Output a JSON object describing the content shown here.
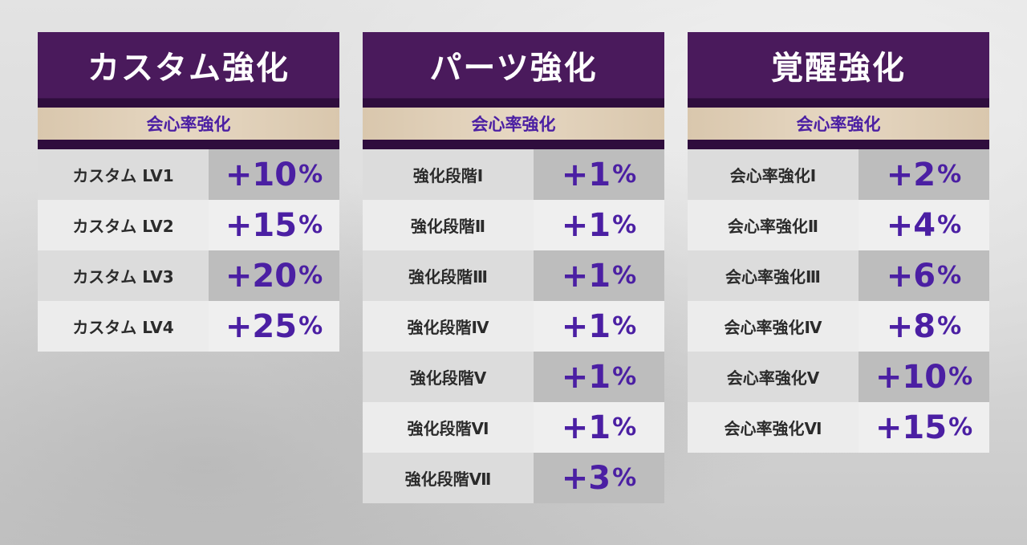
{
  "panels": [
    {
      "id": "custom",
      "title": "カスタム強化",
      "subtitle": "会心率強化",
      "rows": [
        {
          "label": "カスタム LV1",
          "value": "+10",
          "unit": "%"
        },
        {
          "label": "カスタム LV2",
          "value": "+15",
          "unit": "%"
        },
        {
          "label": "カスタム LV3",
          "value": "+20",
          "unit": "%"
        },
        {
          "label": "カスタム LV4",
          "value": "+25",
          "unit": "%"
        }
      ]
    },
    {
      "id": "parts",
      "title": "パーツ強化",
      "subtitle": "会心率強化",
      "rows": [
        {
          "label": "強化段階Ⅰ",
          "value": "+1",
          "unit": "%"
        },
        {
          "label": "強化段階Ⅱ",
          "value": "+1",
          "unit": "%"
        },
        {
          "label": "強化段階Ⅲ",
          "value": "+1",
          "unit": "%"
        },
        {
          "label": "強化段階Ⅳ",
          "value": "+1",
          "unit": "%"
        },
        {
          "label": "強化段階Ⅴ",
          "value": "+1",
          "unit": "%"
        },
        {
          "label": "強化段階Ⅵ",
          "value": "+1",
          "unit": "%"
        },
        {
          "label": "強化段階Ⅶ",
          "value": "+3",
          "unit": "%"
        }
      ]
    },
    {
      "id": "awaken",
      "title": "覚醒強化",
      "subtitle": "会心率強化",
      "rows": [
        {
          "label": "会心率強化Ⅰ",
          "value": "+2",
          "unit": "%"
        },
        {
          "label": "会心率強化Ⅱ",
          "value": "+4",
          "unit": "%"
        },
        {
          "label": "会心率強化Ⅲ",
          "value": "+6",
          "unit": "%"
        },
        {
          "label": "会心率強化Ⅳ",
          "value": "+8",
          "unit": "%"
        },
        {
          "label": "会心率強化Ⅴ",
          "value": "+10",
          "unit": "%"
        },
        {
          "label": "会心率強化Ⅵ",
          "value": "+15",
          "unit": "%"
        }
      ]
    }
  ],
  "colors": {
    "header_bg": "#4a1a5c",
    "stripe_bg": "#2f0d3d",
    "subtitle_bg": "#e0cfb6",
    "accent_text": "#4b1fa3"
  }
}
